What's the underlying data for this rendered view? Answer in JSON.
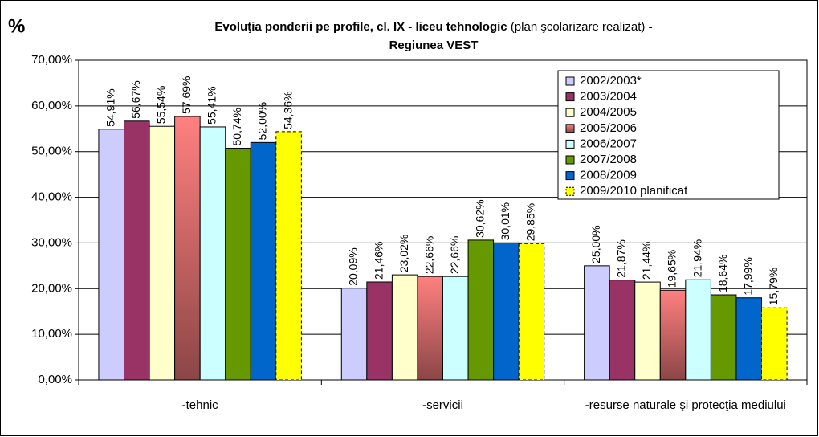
{
  "chart_data": {
    "type": "bar",
    "title": [
      "Evoluţia ponderii pe profile, cl. IX - liceu tehnologic",
      "(plan şcolarizare realizat)",
      "-",
      "Regiunea VEST"
    ],
    "y_label": "%",
    "categories": [
      "-tehnic",
      "-servicii",
      "-resurse naturale şi protecţia mediului"
    ],
    "series": [
      {
        "name": "2002/2003*",
        "color": "#ccccff",
        "values": [
          54.91,
          20.09,
          25.0
        ],
        "value_labels": [
          "54,91%",
          "20,09%",
          "25,00%"
        ]
      },
      {
        "name": "2003/2004",
        "color": "#993366",
        "values": [
          56.67,
          21.46,
          21.87
        ],
        "value_labels": [
          "56,67%",
          "21,46%",
          "21,87%"
        ]
      },
      {
        "name": "2004/2005",
        "color": "#ffffcc",
        "values": [
          55.54,
          23.02,
          21.44
        ],
        "value_labels": [
          "55,54%",
          "23,02%",
          "21,44%"
        ]
      },
      {
        "name": "2005/2006",
        "color": "#ff8080",
        "values": [
          57.69,
          22.66,
          19.65
        ],
        "value_labels": [
          "57,69%",
          "22,66%",
          "19,65%"
        ]
      },
      {
        "name": "2006/2007",
        "color": "#ccffff",
        "values": [
          55.41,
          22.66,
          21.94
        ],
        "value_labels": [
          "55,41%",
          "22,66%",
          "21,94%"
        ]
      },
      {
        "name": "2007/2008",
        "color": "#669900",
        "values": [
          50.74,
          30.62,
          18.64
        ],
        "value_labels": [
          "50,74%",
          "30,62%",
          "18,64%"
        ]
      },
      {
        "name": "2008/2009",
        "color": "#0066cc",
        "values": [
          52.0,
          30.01,
          17.99
        ],
        "value_labels": [
          "52,00%",
          "30,01%",
          "17,99%"
        ]
      },
      {
        "name": "2009/2010 planificat",
        "color": "#ffff00",
        "border_style": "dashed",
        "values": [
          54.36,
          29.85,
          15.79
        ],
        "value_labels": [
          "54,36%",
          "29,85%",
          "15,79%"
        ]
      }
    ],
    "ylim": [
      0,
      70
    ],
    "yticks": [
      {
        "value": 0,
        "label": "0,00%"
      },
      {
        "value": 10,
        "label": "10,00%"
      },
      {
        "value": 20,
        "label": "20,00%"
      },
      {
        "value": 30,
        "label": "30,00%"
      },
      {
        "value": 40,
        "label": "40,00%"
      },
      {
        "value": 50,
        "label": "50,00%"
      },
      {
        "value": 60,
        "label": "60,00%"
      },
      {
        "value": 70,
        "label": "70,00%"
      }
    ],
    "grid": true,
    "legend": "upper right"
  }
}
